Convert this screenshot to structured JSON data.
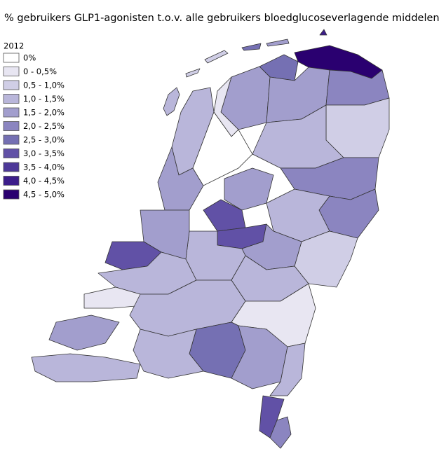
{
  "header": {
    "title": "% gebruikers GLP1-agonisten t.o.v. alle gebruikers bloedglucoseverlagende middelen"
  },
  "legend": {
    "title": "2012",
    "items": [
      {
        "label": "0%",
        "color": "#ffffff"
      },
      {
        "label": "0 - 0,5%",
        "color": "#e8e6f2"
      },
      {
        "label": "0,5 - 1,0%",
        "color": "#d0cee6"
      },
      {
        "label": "1,0 - 1,5%",
        "color": "#b9b6da"
      },
      {
        "label": "1,5 - 2,0%",
        "color": "#a29ecd"
      },
      {
        "label": "2,0 - 2,5%",
        "color": "#8b85c0"
      },
      {
        "label": "2,5 - 3,0%",
        "color": "#7570b3"
      },
      {
        "label": "3,0 - 3,5%",
        "color": "#6151a6"
      },
      {
        "label": "3,5 - 4,0%",
        "color": "#4d3898"
      },
      {
        "label": "4,0 - 4,5%",
        "color": "#3c1d8a"
      },
      {
        "label": "4,5 - 5,0%",
        "color": "#2a0070"
      }
    ]
  }
}
